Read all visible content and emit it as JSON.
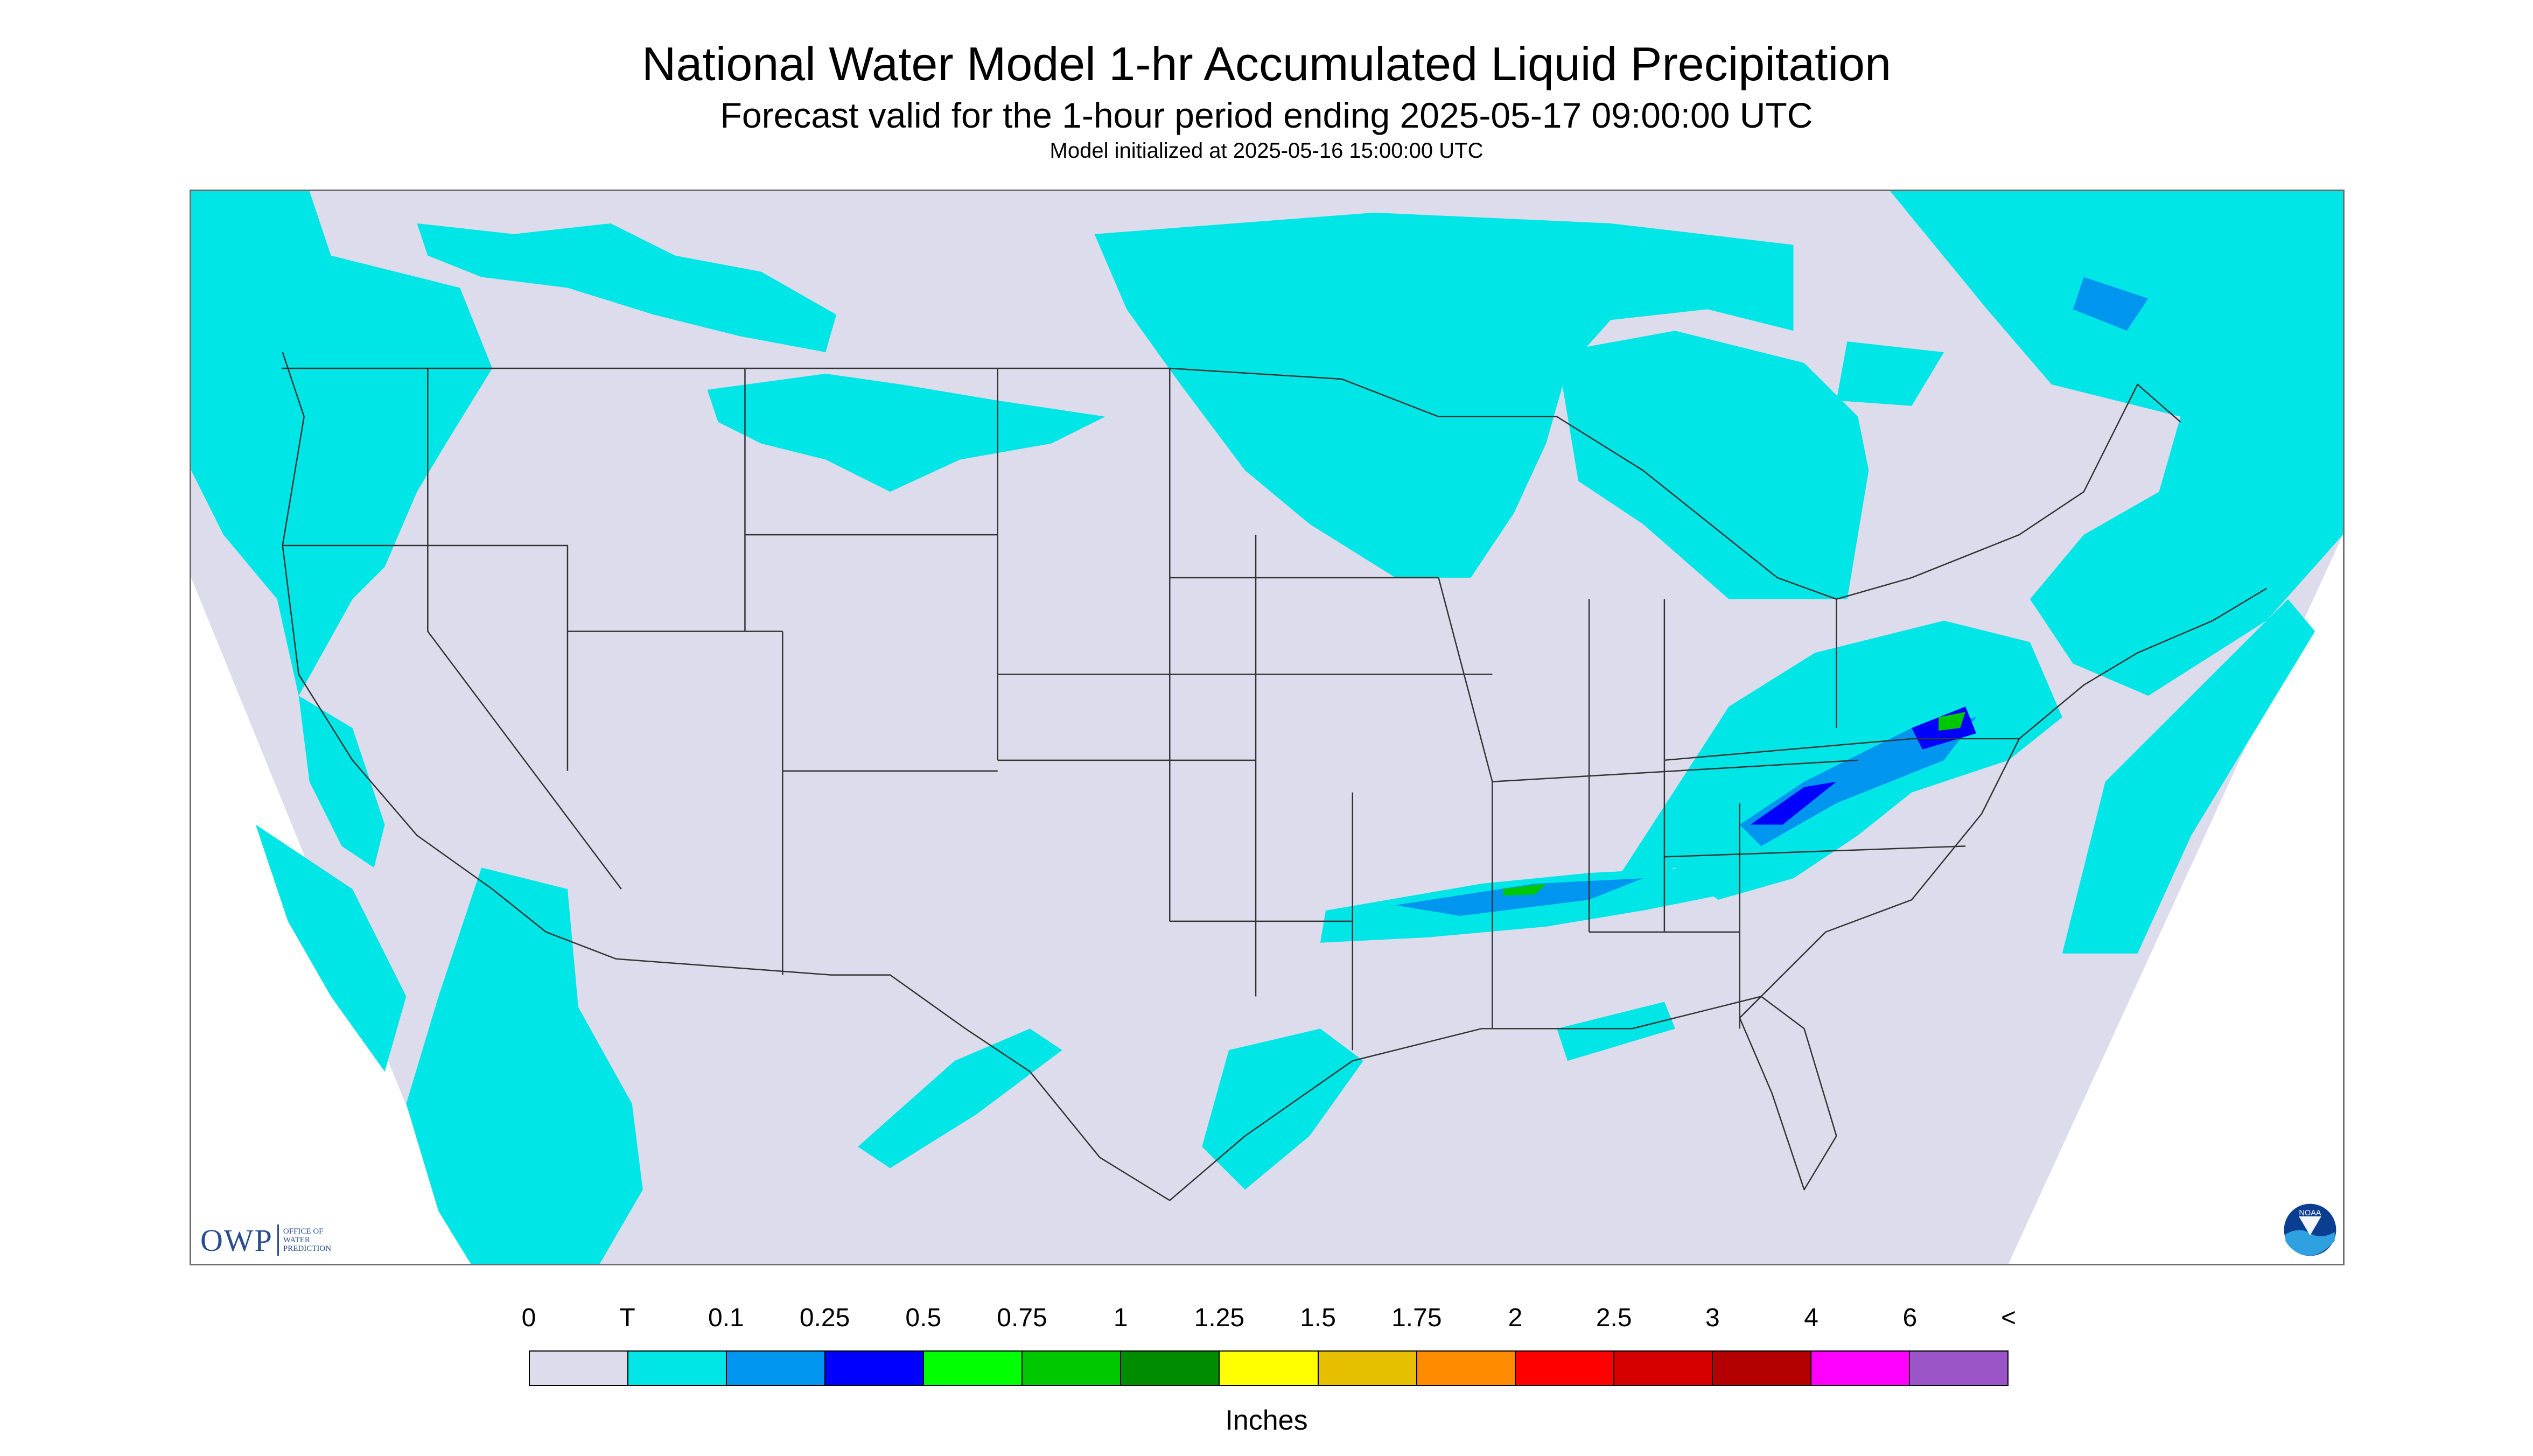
{
  "header": {
    "title": "National Water Model 1-hr Accumulated Liquid Precipitation",
    "subtitle": "Forecast valid for the 1-hour period ending 2025-05-17 09:00:00 UTC",
    "init_note": "Model initialized at 2025-05-16 15:00:00 UTC"
  },
  "map": {
    "background_color": "#dcdcec",
    "outside_domain_color": "#ffffff",
    "border_color": "#333333",
    "precip_light_color": "#00e5e5",
    "precip_moderate_color": "#0096f0",
    "precip_heavy_color": "#0000ff",
    "precip_green_color": "#00c800"
  },
  "logos": {
    "owp_letters": "OWP",
    "owp_line1": "OFFICE OF",
    "owp_line2": "WATER",
    "owp_line3": "PREDICTION",
    "noaa_text": "NOAA",
    "owp_icon": "owp-logo",
    "noaa_icon": "noaa-logo"
  },
  "legend": {
    "labels": [
      "0",
      "T",
      "0.1",
      "0.25",
      "0.5",
      "0.75",
      "1",
      "1.25",
      "1.5",
      "1.75",
      "2",
      "2.5",
      "3",
      "4",
      "6",
      "<"
    ],
    "colors": [
      "#dcdcec",
      "#00e5e5",
      "#0096f0",
      "#0000ff",
      "#00ff00",
      "#00c800",
      "#008c00",
      "#ffff00",
      "#e6c000",
      "#ff8c00",
      "#ff0000",
      "#d70000",
      "#b40000",
      "#ff00ff",
      "#9b55c8"
    ],
    "unit": "Inches"
  }
}
